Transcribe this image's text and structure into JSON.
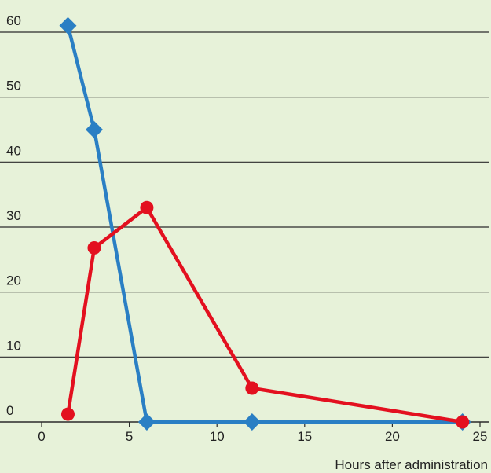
{
  "chart_data": {
    "type": "line",
    "xlabel": "Hours after administration",
    "ylabel": "",
    "xlim": [
      -1.5,
      25.5
    ],
    "ylim": [
      0,
      60
    ],
    "xticks": [
      0,
      5,
      10,
      15,
      20,
      25
    ],
    "yticks": [
      0,
      10,
      20,
      30,
      40,
      50,
      60
    ],
    "grid": "horizontal",
    "series": [
      {
        "color": "#2a7fc4",
        "marker": "diamond",
        "x": [
          1.5,
          3,
          6,
          12,
          24
        ],
        "y": [
          61,
          45,
          0,
          0,
          0
        ]
      },
      {
        "color": "#e3101f",
        "marker": "circle",
        "x": [
          1.5,
          3,
          6,
          12,
          24
        ],
        "y": [
          1.2,
          26.8,
          33,
          5.2,
          0
        ]
      }
    ]
  }
}
